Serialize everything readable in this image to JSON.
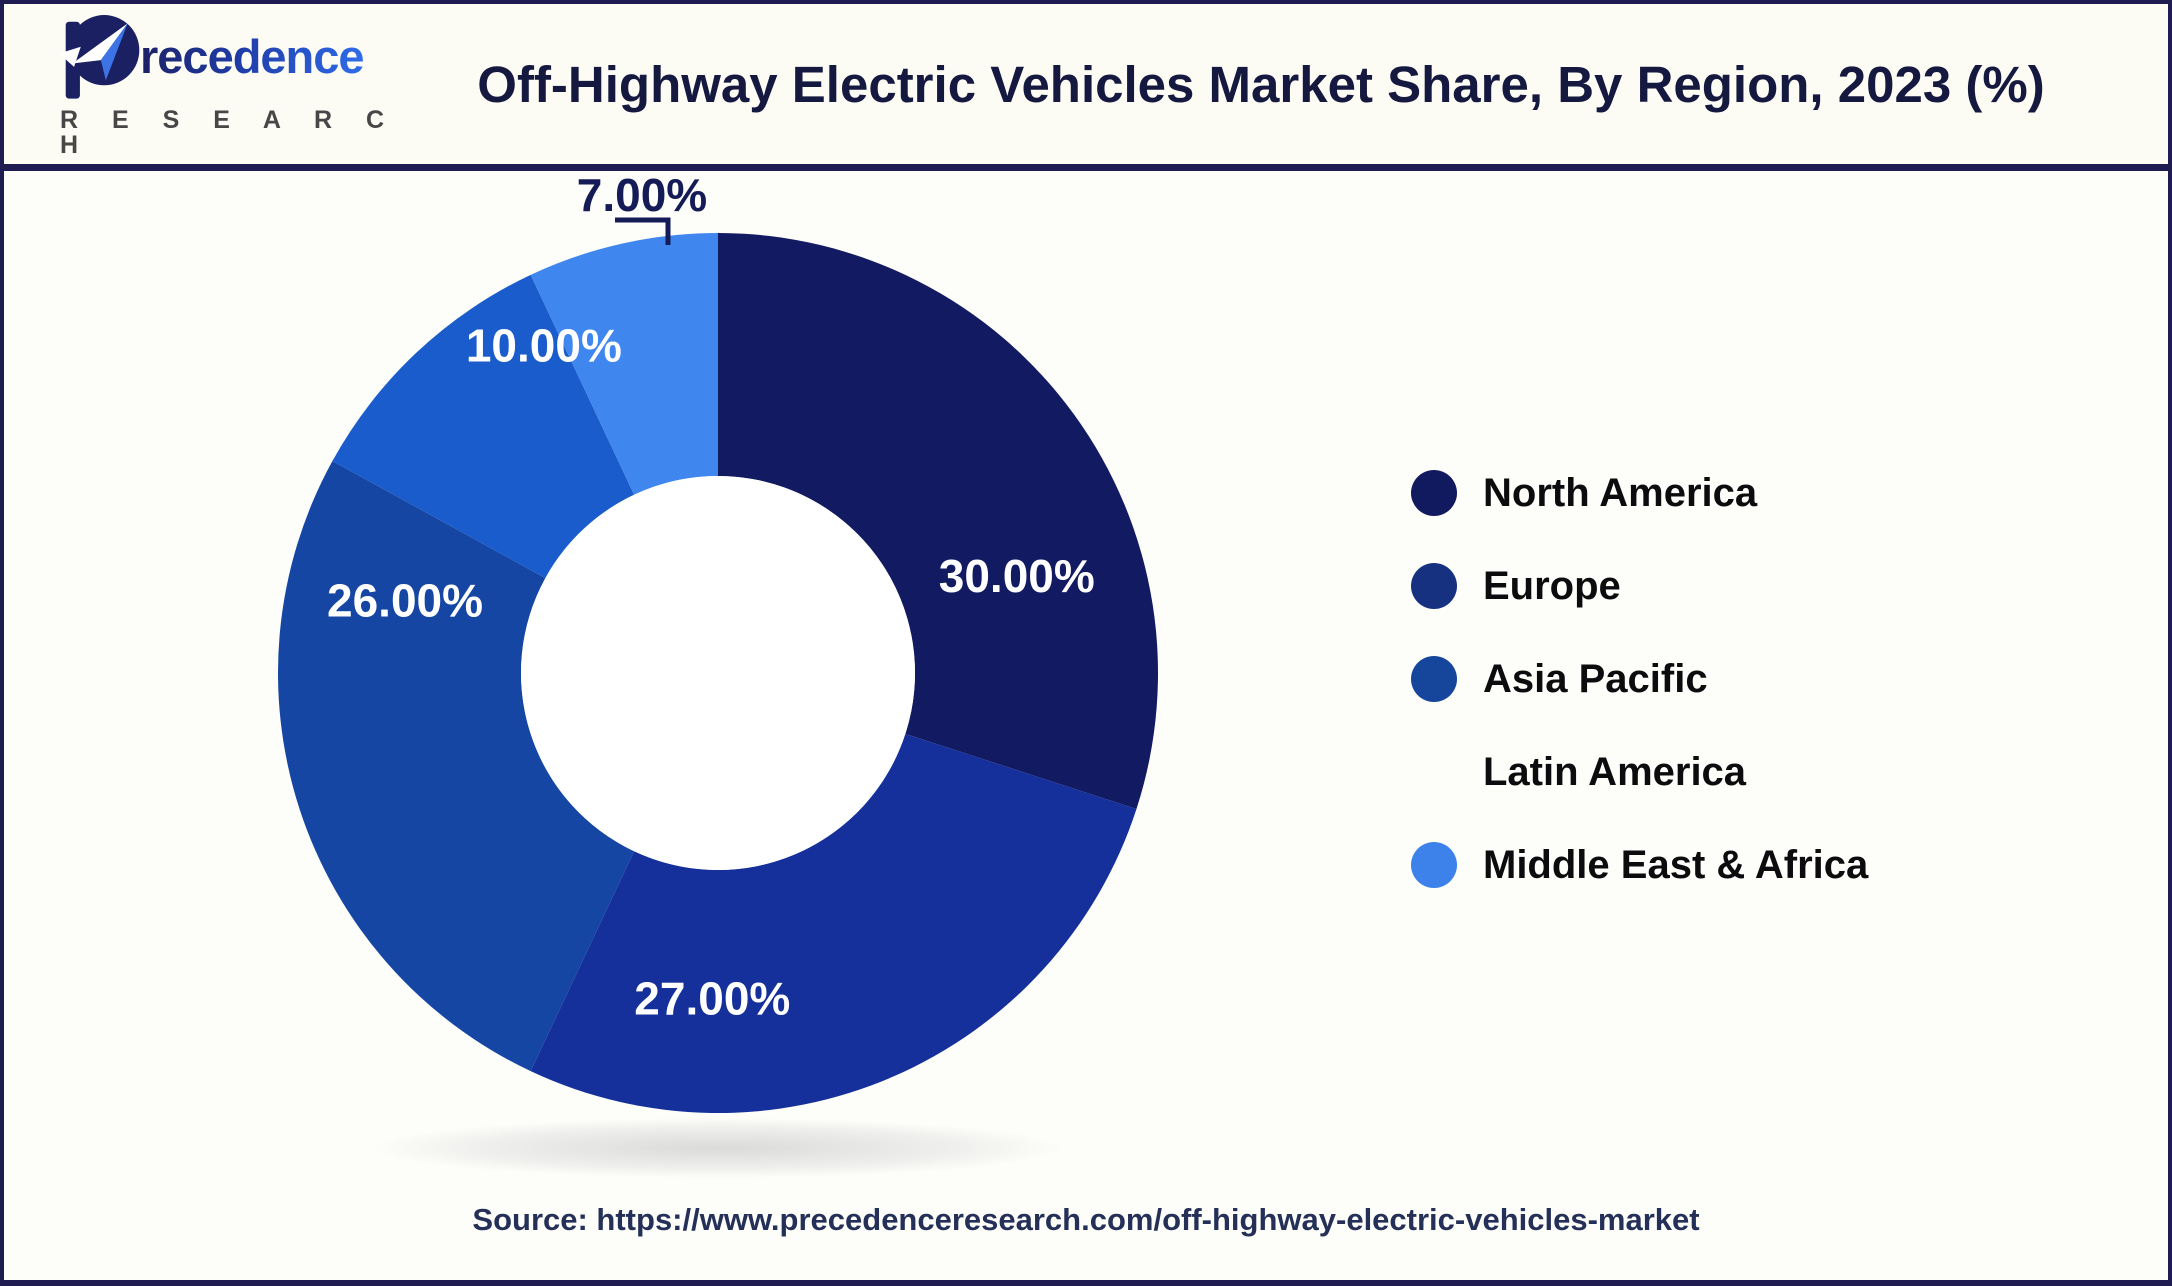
{
  "header": {
    "logo_name": "recedence",
    "logo_subname": "R E S E A R C H",
    "title": "Off-Highway Electric Vehicles Market Share, By Region, 2023 (%)"
  },
  "chart_data": {
    "type": "pie",
    "subtype": "donut",
    "title": "Off-Highway Electric Vehicles Market Share, By Region, 2023 (%)",
    "unit": "%",
    "direction": "clockwise",
    "start_angle_deg": 0,
    "categories": [
      "North America",
      "Europe",
      "Asia Pacific",
      "Latin America",
      "Middle East & Africa"
    ],
    "values": [
      30.0,
      27.0,
      26.0,
      10.0,
      7.0
    ],
    "slices": [
      {
        "label": "North America",
        "value": 30.0,
        "display": "30.00%",
        "color": "#121a61",
        "label_color": "#ffffff",
        "label_angle": 72,
        "label_r": 0.714,
        "outside": false
      },
      {
        "label": "Europe",
        "value": 27.0,
        "display": "27.00%",
        "color": "#15309b",
        "label_color": "#ffffff",
        "label_angle": 181,
        "label_r": 0.74,
        "outside": false
      },
      {
        "label": "Asia Pacific",
        "value": 26.0,
        "display": "26.00%",
        "color": "#1546a3",
        "label_color": "#ffffff",
        "label_angle": 283,
        "label_r": 0.73,
        "outside": false
      },
      {
        "label": "Latin America",
        "value": 10.0,
        "display": "10.00%",
        "color": "#1a5ccb",
        "label_color": "#ffffff",
        "label_angle": 332,
        "label_r": 0.843,
        "outside": false
      },
      {
        "label": "Middle East & Africa",
        "value": 7.0,
        "display": "7.00%",
        "color": "#4086ef",
        "label_color": "#141b56",
        "outside": true
      }
    ],
    "legend_position": "right",
    "hole_color": "#ffffff"
  },
  "legend": {
    "items": [
      {
        "label": "North America",
        "marker_color": "#111a5e",
        "marker_visible": true
      },
      {
        "label": "Europe",
        "marker_color": "#16317f",
        "marker_visible": true
      },
      {
        "label": "Asia Pacific",
        "marker_color": "#16469c",
        "marker_visible": true
      },
      {
        "label": "Latin America",
        "marker_color": null,
        "marker_visible": false
      },
      {
        "label": "Middle East & Africa",
        "marker_color": "#3c82ea",
        "marker_visible": true
      }
    ]
  },
  "footer": {
    "source": "Source: https://www.precedenceresearch.com/off-highway-electric-vehicles-market"
  }
}
